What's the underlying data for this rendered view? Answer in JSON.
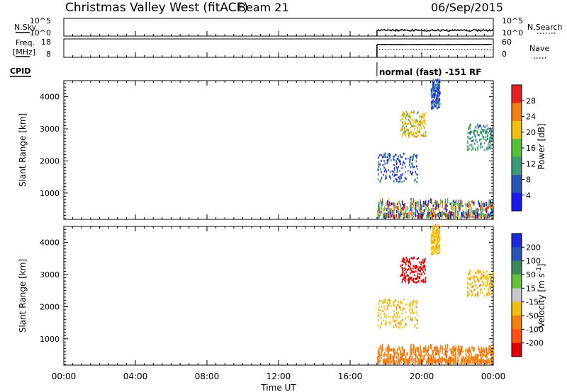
{
  "chart_data": {
    "type": "heatmap",
    "header": {
      "title": "Christmas Valley West (fitACF)",
      "beam": "Beam 21",
      "date": "06/Sep/2015"
    },
    "xaxis": {
      "label": "Time UT",
      "ticks": [
        "00:00",
        "04:00",
        "08:00",
        "12:00",
        "16:00",
        "20:00",
        "00:00"
      ],
      "range_hours": [
        0,
        24
      ]
    },
    "mode_text": "normal (fast) -151 RF",
    "mode_start_hour": 17.5,
    "panels": {
      "nsky": {
        "label": "N.Sky",
        "right_label": "N.Search",
        "left_ticks": [
          "10^5",
          "10^0"
        ],
        "right_ticks": [
          "10^5",
          "10^0"
        ]
      },
      "freq": {
        "label_lines": [
          "Freq.",
          "[MHz]"
        ],
        "right_label": "Nave",
        "left_ticks": [
          "18",
          "8"
        ],
        "right_ticks": [
          "60",
          "0"
        ]
      },
      "cpid": {
        "label": "CPID"
      },
      "power": {
        "ylabel": "Slant Range [km]",
        "yticks": [
          1000,
          2000,
          3000,
          4000
        ],
        "ylim": [
          180,
          4500
        ],
        "colorbar_label": "Power [dB]",
        "colorbar_ticks": [
          "4",
          "8",
          "12",
          "16",
          "20",
          "24",
          "28"
        ],
        "colorbar_colors": [
          "#1a1aee",
          "#2a55b8",
          "#3d9a78",
          "#55c23a",
          "#f0c010",
          "#f08010",
          "#e82020"
        ]
      },
      "velocity": {
        "ylabel": "Slant Range [km]",
        "yticks": [
          1000,
          2000,
          3000,
          4000
        ],
        "ylim": [
          180,
          4500
        ],
        "colorbar_label": "Velocity [m s^-1]",
        "colorbar_ticks": [
          "200",
          "100",
          "50",
          "15",
          "-15",
          "-50",
          "-100",
          "-200"
        ],
        "colorbar_colors": [
          "#1a2ad8",
          "#2a55b8",
          "#3d8a5a",
          "#66c23a",
          "#c8c8c8",
          "#f0c010",
          "#f08010",
          "#ff5010",
          "#e00000"
        ]
      }
    },
    "scatter_regions": [
      {
        "t0": 17.5,
        "t1": 24.0,
        "r0": 200,
        "r1": 700,
        "power": "mixed",
        "velocity": "-50"
      },
      {
        "t0": 17.5,
        "t1": 19.8,
        "r0": 1300,
        "r1": 2200,
        "power": "8",
        "velocity": "-15"
      },
      {
        "t0": 18.8,
        "t1": 20.2,
        "r0": 2700,
        "r1": 3500,
        "power": "20",
        "velocity": "-200"
      },
      {
        "t0": 20.5,
        "t1": 21.0,
        "r0": 3600,
        "r1": 4500,
        "power": "8",
        "velocity": "-15"
      },
      {
        "t0": 22.5,
        "t1": 24.0,
        "r0": 2300,
        "r1": 3100,
        "power": "12",
        "velocity": "-15"
      }
    ]
  }
}
